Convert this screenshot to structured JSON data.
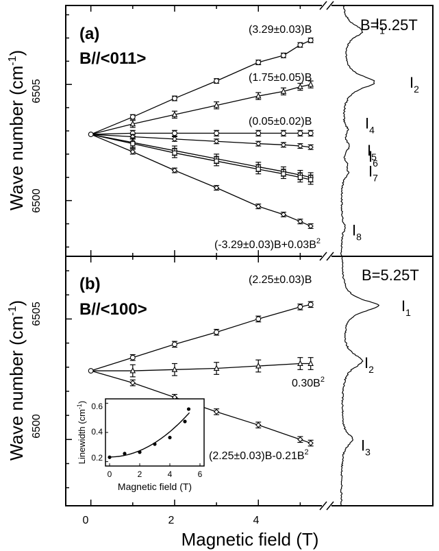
{
  "figure": {
    "xlabel": "Magnetic field (T)",
    "x_ticks": [
      "0",
      "2",
      "4"
    ]
  },
  "chart_data": [
    {
      "panel": "a",
      "type": "scatter",
      "panel_label": "(a)",
      "orientation": "B//<011>",
      "ylabel": "Wave number (cm-1)",
      "ylabel_main": "Wave number (cm",
      "ylabel_sup": "-1",
      "ylabel_end": ")",
      "y_ticks": [
        "6500",
        "6505"
      ],
      "ylim": [
        6497.6,
        6508.4
      ],
      "xlim": [
        -0.6,
        5.55
      ],
      "grid": false,
      "x": [
        0,
        1,
        2,
        3,
        4,
        4.6,
        5,
        5.25
      ],
      "series": [
        {
          "values": [
            6502.85,
            6503.6,
            6504.4,
            6505.15,
            6505.95,
            6506.25,
            6506.7,
            6506.9
          ],
          "marker": "circle",
          "error": 0.1
        },
        {
          "values": [
            6502.85,
            6503.3,
            6503.7,
            6504.1,
            6504.5,
            6504.7,
            6504.9,
            6505.0
          ],
          "marker": "triangle",
          "error": 0.15
        },
        {
          "values": [
            6502.85,
            6502.9,
            6502.9,
            6502.9,
            6502.9,
            6502.9,
            6502.9,
            6502.9
          ],
          "marker": "circle",
          "error": 0.12
        },
        {
          "values": [
            6502.85,
            6502.75,
            6502.65,
            6502.55,
            6502.45,
            6502.4,
            6502.35,
            6502.3
          ],
          "marker": "diamond",
          "error": 0.1
        },
        {
          "values": [
            6502.85,
            6502.5,
            6502.15,
            6501.8,
            6501.45,
            6501.25,
            6501.1,
            6501.0
          ],
          "marker": "circle",
          "error": 0.2
        },
        {
          "values": [
            6502.85,
            6502.45,
            6502.05,
            6501.7,
            6501.35,
            6501.15,
            6501.0,
            6500.9
          ],
          "marker": "square",
          "error": 0.2
        },
        {
          "values": [
            6502.85,
            6502.1,
            6501.3,
            6500.55,
            6499.75,
            6499.4,
            6499.1,
            6498.9
          ],
          "marker": "diamond",
          "error": 0.1
        }
      ],
      "annotations": [
        "(3.29±0.03)B",
        "(1.75±0.05)B",
        "(0.05±0.02)B",
        "(-3.29±0.03)B+0.03B2"
      ],
      "spectrum": {
        "title": "B=5.25T",
        "peaks": [
          {
            "label": "I",
            "sub": "1",
            "wavenumber": 6507.3
          },
          {
            "label": "I",
            "sub": "2",
            "wavenumber": 6505.1
          },
          {
            "label": "I",
            "sub": "4",
            "wavenumber": 6503.05
          },
          {
            "label": "I",
            "sub": "5",
            "wavenumber": 6502.35
          },
          {
            "label": "I",
            "sub": "6",
            "wavenumber": 6501.55
          },
          {
            "label": "I",
            "sub": "7",
            "wavenumber": 6501.15
          },
          {
            "label": "I",
            "sub": "8",
            "wavenumber": 6498.85
          }
        ]
      }
    },
    {
      "panel": "b",
      "type": "scatter",
      "panel_label": "(b)",
      "orientation": "B//<100>",
      "ylabel": "Wave number (cm-1)",
      "ylabel_main": "Wave number (cm",
      "ylabel_sup": "-1",
      "ylabel_end": ")",
      "y_ticks": [
        "6500",
        "6505"
      ],
      "ylim": [
        6497.25,
        6507.6
      ],
      "xlim": [
        -0.6,
        5.55
      ],
      "grid": false,
      "x": [
        0,
        1,
        2,
        3,
        4,
        5,
        5.25
      ],
      "series": [
        {
          "values": [
            6502.85,
            6503.4,
            6503.95,
            6504.45,
            6505.0,
            6505.5,
            6505.6
          ],
          "marker": "circle",
          "error": 0.12
        },
        {
          "values": [
            6502.85,
            6502.85,
            6502.9,
            6502.95,
            6503.05,
            6503.15,
            6503.15
          ],
          "marker": "triangle",
          "error": 0.25
        },
        {
          "values": [
            6502.85,
            6502.35,
            6501.75,
            6501.15,
            6500.6,
            6500.0,
            6499.85
          ],
          "marker": "diamond",
          "error": 0.12
        }
      ],
      "annotations": [
        "(2.25±0.03)B",
        "0.30B2",
        "(2.25±0.03)B-0.21B2"
      ],
      "spectrum": {
        "title": "B=5.25T",
        "peaks": [
          {
            "label": "I",
            "sub": "1",
            "wavenumber": 6505.55
          },
          {
            "label": "I",
            "sub": "2",
            "wavenumber": 6503.25
          },
          {
            "label": "I",
            "sub": "3",
            "wavenumber": 6500.0
          }
        ]
      }
    },
    {
      "panel": "inset",
      "type": "scatter",
      "xlabel": "Magnetic field (T)",
      "ylabel": "Linewidth (cm-1)",
      "ylabel_main": "Linewidth (cm",
      "ylabel_sup": "-1",
      "ylabel_end": ")",
      "x_ticks": [
        "0",
        "2",
        "4",
        "6"
      ],
      "y_ticks": [
        "0.2",
        "0.4",
        "0.6"
      ],
      "xlim": [
        -0.3,
        6.0
      ],
      "ylim": [
        0.17,
        0.63
      ],
      "x": [
        0,
        1,
        2,
        3,
        4,
        5,
        5.25
      ],
      "values": [
        0.23,
        0.255,
        0.265,
        0.32,
        0.365,
        0.475,
        0.56
      ],
      "fit_curve": {
        "form": "a + b*B^2",
        "a": 0.232,
        "b": 0.0108
      }
    }
  ]
}
